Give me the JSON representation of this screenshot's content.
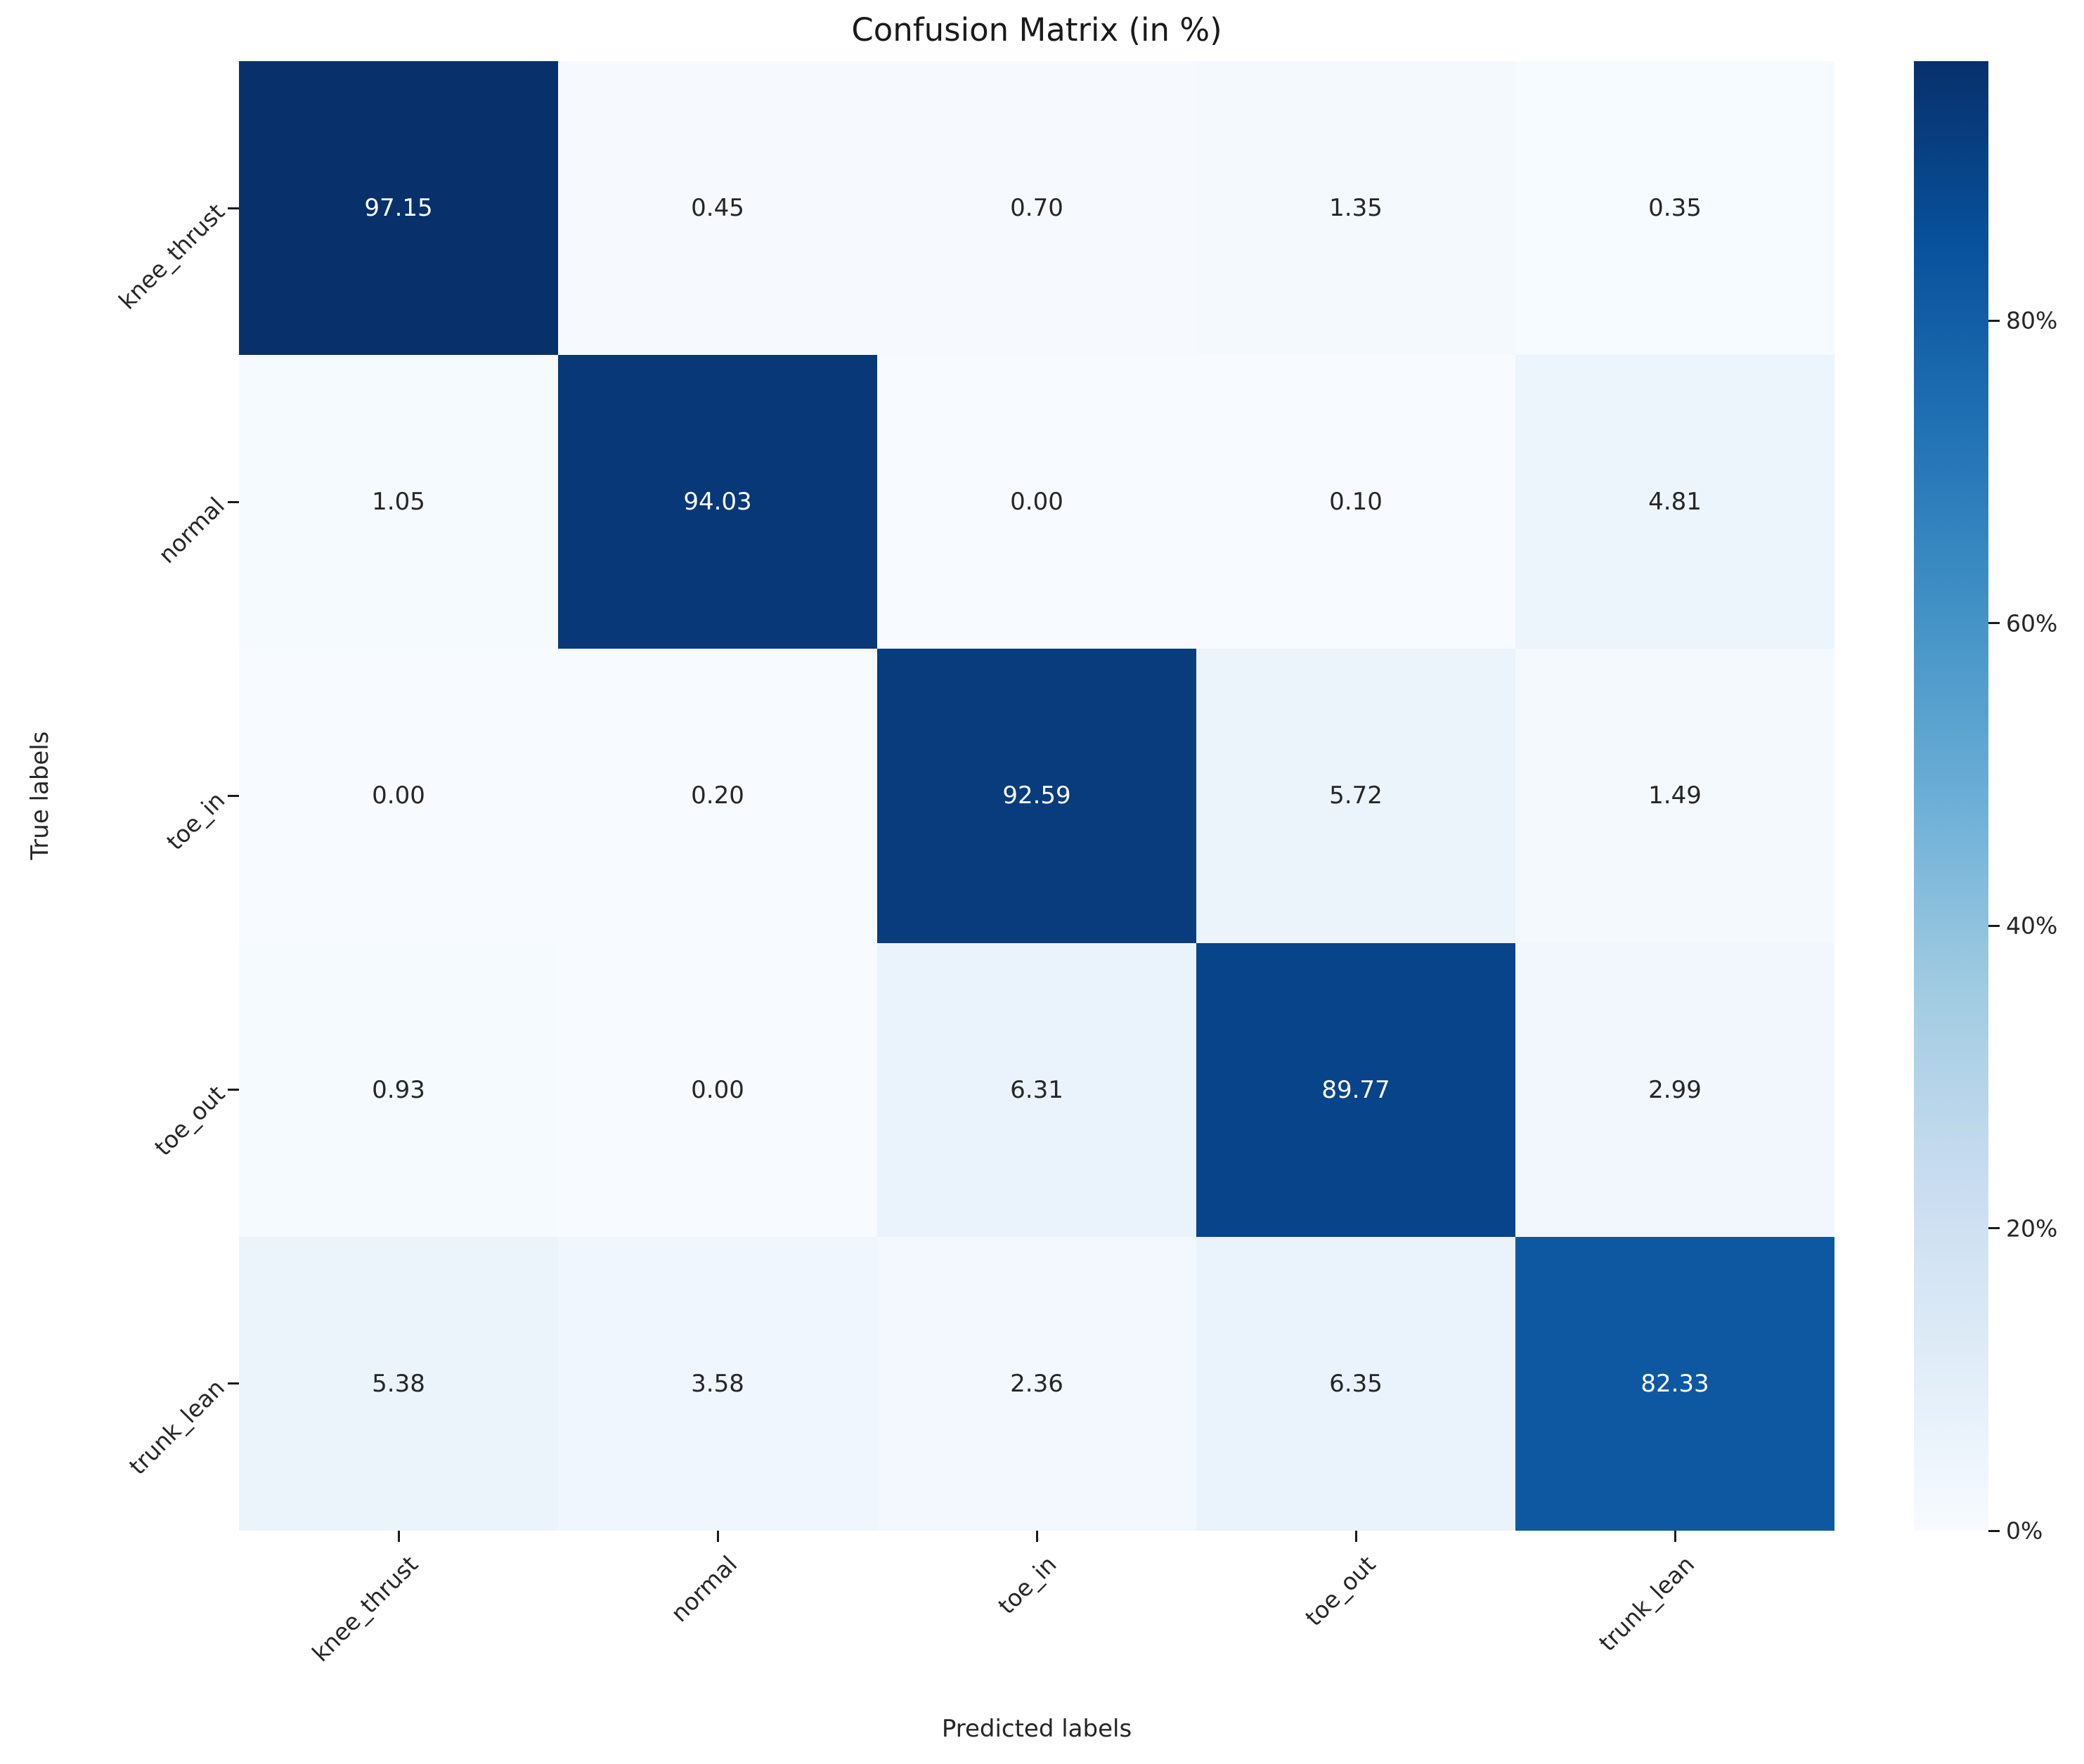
{
  "title": "Confusion Matrix (in %)",
  "chart_data": {
    "type": "heatmap",
    "title": "Confusion Matrix (in %)",
    "xlabel": "Predicted labels",
    "ylabel": "True labels",
    "categories": [
      "knee_thrust",
      "normal",
      "toe_in",
      "toe_out",
      "trunk_lean"
    ],
    "x_categories": [
      "knee_thrust",
      "normal",
      "toe_in",
      "toe_out",
      "trunk_lean"
    ],
    "matrix_percent": [
      [
        97.15,
        0.45,
        0.7,
        1.35,
        0.35
      ],
      [
        1.05,
        94.03,
        0.0,
        0.1,
        4.81
      ],
      [
        0.0,
        0.2,
        92.59,
        5.72,
        1.49
      ],
      [
        0.93,
        0.0,
        6.31,
        89.77,
        2.99
      ],
      [
        5.38,
        3.58,
        2.36,
        6.35,
        82.33
      ]
    ],
    "value_decimals": 2,
    "colormap": "Blues",
    "vmin": 0,
    "vmax": 97.15,
    "grid": false,
    "colorbar": {
      "position": "right",
      "tick_values": [
        0,
        20,
        40,
        60,
        80
      ],
      "tick_labels": [
        "0%",
        "20%",
        "40%",
        "60%",
        "80%"
      ]
    }
  },
  "colors": {
    "background": "#ffffff",
    "annotation_dark_text": "#262626",
    "annotation_light_text": "#ffffff",
    "tick_mark": "#1a1a1a",
    "blues_anchors": [
      "#f7fbff",
      "#deebf7",
      "#c6dbef",
      "#9ecae1",
      "#6baed6",
      "#4292c6",
      "#2171b5",
      "#08519c",
      "#08306b"
    ]
  }
}
